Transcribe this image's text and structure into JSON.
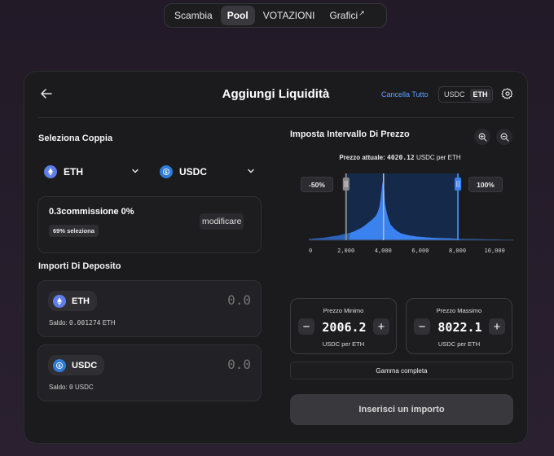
{
  "nav": {
    "items": [
      {
        "label": "Scambia",
        "active": false
      },
      {
        "label": "Pool",
        "active": true
      },
      {
        "label": "VOTAZIONI",
        "active": false
      },
      {
        "label": "Grafici",
        "active": false,
        "external_icon": "↗"
      }
    ]
  },
  "header": {
    "title": "Aggiungi Liquidità",
    "clear_all": "Cancella Tutto",
    "toggle": [
      "USDC",
      "ETH"
    ],
    "toggle_active": "ETH",
    "back_icon": "arrow-left-icon",
    "settings_icon": "gear-icon"
  },
  "pair": {
    "title": "Seleziona Coppia",
    "token_a": "ETH",
    "token_b": "USDC"
  },
  "fee": {
    "title": "0.3commissione 0%",
    "badge": "69% seleziona",
    "edit_label": "modificare"
  },
  "deposit": {
    "title": "Importi Di Deposito",
    "rows": [
      {
        "token": "ETH",
        "amount": "0.0",
        "balance_label": "Saldo:",
        "balance_value": "0.001274",
        "balance_unit": "ETH"
      },
      {
        "token": "USDC",
        "amount": "0.0",
        "balance_label": "Saldo:",
        "balance_value": "0",
        "balance_unit": "USDC"
      }
    ]
  },
  "range": {
    "title": "Imposta Intervallo Di Prezzo",
    "current_label": "Prezzo attuale:",
    "current_value": "4020.12",
    "current_unit": "USDC per ETH",
    "min_pct": "-50%",
    "max_pct": "100%",
    "min": {
      "title": "Prezzo Minimo",
      "value": "2006.2",
      "unit": "USDC per ETH"
    },
    "max": {
      "title": "Prezzo Massimo",
      "value": "8022.1",
      "unit": "USDC per ETH"
    },
    "full_range": "Gamma completa",
    "submit": "Inserisci un importo"
  },
  "chart_data": {
    "type": "area",
    "x_ticks": [
      0,
      2000,
      4000,
      6000,
      8000,
      10000
    ],
    "x_tick_labels": [
      "0",
      "2,000",
      "4,000",
      "6,000",
      "8,000",
      "10,000"
    ],
    "xlim": [
      0,
      11000
    ],
    "current_price": 4020.12,
    "range_min": 2006.2,
    "range_max": 8022.1,
    "x": [
      0,
      400,
      800,
      1200,
      1600,
      2000,
      2200,
      2400,
      2600,
      2800,
      3000,
      3200,
      3400,
      3600,
      3700,
      3800,
      3850,
      3900,
      3950,
      4000,
      4050,
      4100,
      4200,
      4300,
      4400,
      4600,
      4800,
      5000,
      5400,
      5800,
      6200,
      6600,
      7000,
      7500,
      8000,
      8500,
      9000,
      9500,
      10000,
      10500,
      11000
    ],
    "liquidity": [
      2,
      3,
      4,
      6,
      8,
      11,
      12,
      14,
      17,
      20,
      24,
      29,
      34,
      40,
      46,
      55,
      65,
      78,
      92,
      100,
      88,
      60,
      45,
      34,
      26,
      19,
      14,
      11,
      8,
      6,
      5,
      4,
      3.5,
      3,
      2.5,
      2,
      2,
      1.5,
      1.5,
      1,
      1
    ],
    "colors": {
      "fill": "#2f6fd6",
      "selected": "#3a82f0",
      "range_bg": "#152a4a",
      "current": "#b8b8b8"
    }
  }
}
